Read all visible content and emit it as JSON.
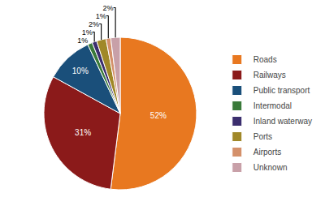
{
  "chart_data": {
    "type": "pie",
    "categories": [
      "Roads",
      "Railways",
      "Public transport",
      "Intermodal",
      "Inland waterway",
      "Ports",
      "Airports",
      "Unknown"
    ],
    "values": [
      52,
      31,
      10,
      1,
      1,
      2,
      1,
      2
    ],
    "value_labels": [
      "52%",
      "31%",
      "10%",
      "1%",
      "1%",
      "2%",
      "1%",
      "2%"
    ],
    "colors": [
      "#E87820",
      "#8B1A1A",
      "#1A4F7A",
      "#3A7A3A",
      "#3B2E6E",
      "#A08828",
      "#D4906A",
      "#C8A0A8"
    ],
    "data_labels": true,
    "legend": "right"
  }
}
